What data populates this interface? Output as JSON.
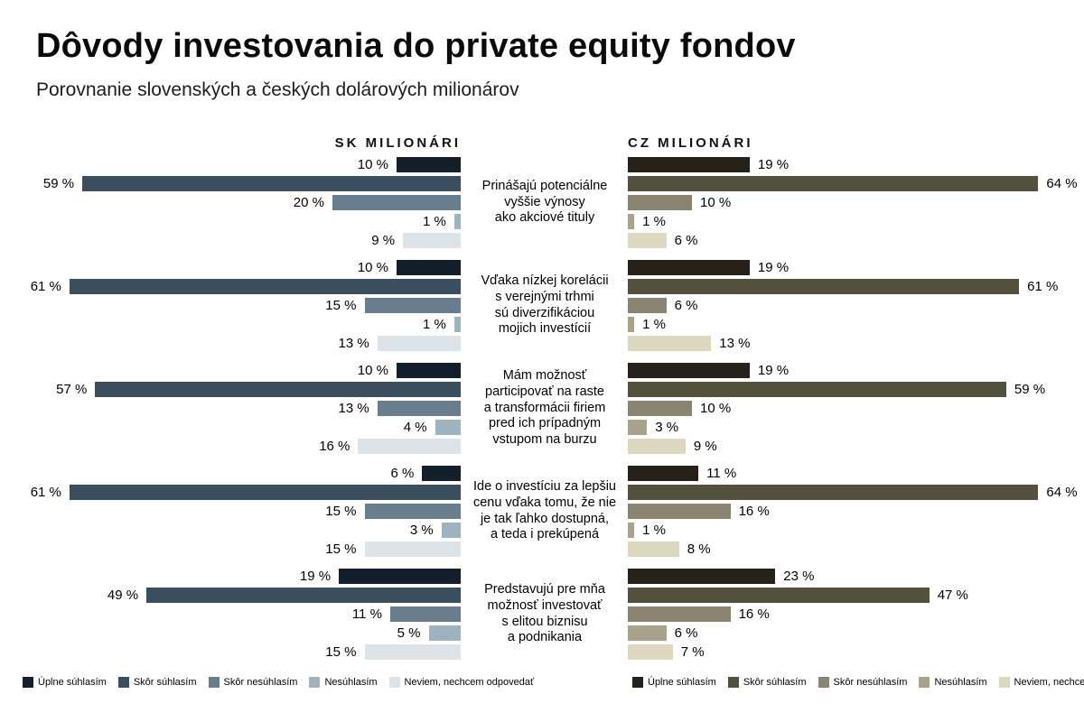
{
  "title": "Dôvody investovania do private equity fondov",
  "subtitle": "Porovnanie slovenských a českých dolárových milionárov",
  "chart_data": {
    "type": "bar",
    "orientation": "horizontal",
    "layout": "butterfly-grouped",
    "title": "Dôvody investovania do private equity fondov",
    "subtitle": "Porovnanie slovenských a českých dolárových milionárov",
    "unit": "%",
    "value_suffix": " %",
    "columns": {
      "left_header": "SK MILIONÁRI",
      "right_header": "CZ MILIONÁRI"
    },
    "legend": [
      "Úplne súhlasím",
      "Skôr súhlasím",
      "Skôr nesúhlasím",
      "Nesúhlasím",
      "Neviem, nechcem odpovedať"
    ],
    "colors": {
      "sk": [
        "#13202c",
        "#3b4e5d",
        "#687d8d",
        "#9fb2c0",
        "#dce4ea"
      ],
      "cz": [
        "#262219",
        "#53503e",
        "#8b8470",
        "#a8a18b",
        "#ded7bf"
      ]
    },
    "axis": {
      "max_percent": 100,
      "pixels_per_percent": 7.1
    },
    "groups": [
      {
        "label": "Prinášajú potenciálne\nvyššie výnosy\nako akciové tituly",
        "sk": [
          10,
          59,
          20,
          1,
          9
        ],
        "cz": [
          19,
          64,
          10,
          1,
          6
        ]
      },
      {
        "label": "Vďaka nízkej korelácii\ns verejnými trhmi\nsú diverzifikáciou\nmojich investícií",
        "sk": [
          10,
          61,
          15,
          1,
          13
        ],
        "cz": [
          19,
          61,
          6,
          1,
          13
        ]
      },
      {
        "label": "Mám možnosť\nparticipovať na raste\na transformácii firiem\npred ich prípadným\nvstupom na burzu",
        "sk": [
          10,
          57,
          13,
          4,
          16
        ],
        "cz": [
          19,
          59,
          10,
          3,
          9
        ]
      },
      {
        "label": "Ide o investíciu za lepšiu\ncenu vďaka tomu, že nie\nje tak ľahko dostupná,\na teda i prekúpená",
        "sk": [
          6,
          61,
          15,
          3,
          15
        ],
        "cz": [
          11,
          64,
          16,
          1,
          8
        ]
      },
      {
        "label": "Predstavujú pre mňa\nmožnosť investovať\ns elitou biznisu\na podnikania",
        "sk": [
          19,
          49,
          11,
          5,
          15
        ],
        "cz": [
          23,
          47,
          16,
          6,
          7
        ]
      }
    ]
  }
}
